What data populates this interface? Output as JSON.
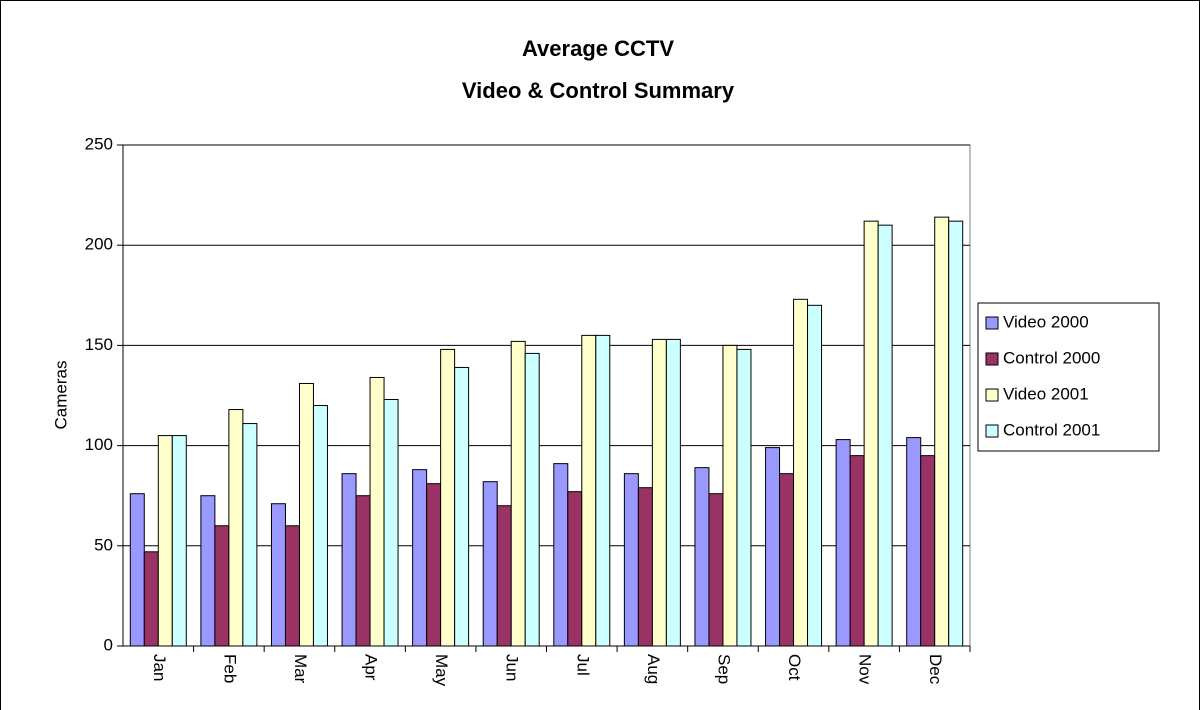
{
  "chart_data": {
    "type": "bar",
    "title": "Average CCTV",
    "subtitle": "Video & Control Summary",
    "y_label": "Cameras",
    "categories": [
      "Jan",
      "Feb",
      "Mar",
      "Apr",
      "May",
      "Jun",
      "Jul",
      "Aug",
      "Sep",
      "Oct",
      "Nov",
      "Dec"
    ],
    "series": [
      {
        "name": "Video 2000",
        "color": "#9999ff",
        "values": [
          76,
          75,
          71,
          86,
          88,
          82,
          91,
          86,
          89,
          99,
          103,
          104
        ]
      },
      {
        "name": "Control 2000",
        "color": "#993366",
        "values": [
          47,
          60,
          60,
          75,
          81,
          70,
          77,
          79,
          76,
          86,
          95,
          95
        ]
      },
      {
        "name": "Video 2001",
        "color": "#ffffcc",
        "values": [
          105,
          118,
          131,
          134,
          148,
          152,
          155,
          153,
          150,
          173,
          212,
          214
        ]
      },
      {
        "name": "Control 2001",
        "color": "#ccffff",
        "values": [
          105,
          111,
          120,
          123,
          139,
          146,
          155,
          153,
          148,
          170,
          210,
          212
        ]
      }
    ],
    "ylim": [
      0,
      250
    ],
    "yticks": [
      0,
      50,
      100,
      150,
      200,
      250
    ],
    "grid": true,
    "legend": "right"
  }
}
